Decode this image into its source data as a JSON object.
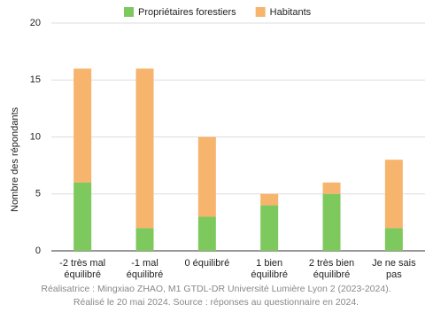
{
  "chart_data": {
    "type": "stacked-bar",
    "y_label": "Nombre des répondants",
    "categories": [
      [
        "-2 très mal",
        "équilibré"
      ],
      [
        "-1 mal",
        "équilibré"
      ],
      [
        "0 équilibré"
      ],
      [
        "1 bien",
        "équilibré"
      ],
      [
        "2 très bien",
        "équilibré"
      ],
      [
        "Je ne sais",
        "pas"
      ]
    ],
    "series": [
      {
        "name": "Propriétaires forestiers",
        "color": "#7dc95e",
        "values": [
          6,
          2,
          3,
          4,
          5,
          2
        ]
      },
      {
        "name": "Habitants",
        "color": "#f6b46c",
        "values": [
          10,
          14,
          7,
          1,
          1,
          6
        ]
      }
    ],
    "ylim": [
      0,
      20
    ],
    "yticks": [
      0,
      5,
      10,
      15,
      20
    ],
    "grid": true,
    "legend": "top",
    "caption": [
      "Réalisatrice : Mingxiao ZHAO, M1 GTDL-DR Université Lumière Lyon 2 (2023-2024).",
      "Réalisé le 20 mai 2024. Source : réponses au questionnaire en 2024."
    ]
  }
}
